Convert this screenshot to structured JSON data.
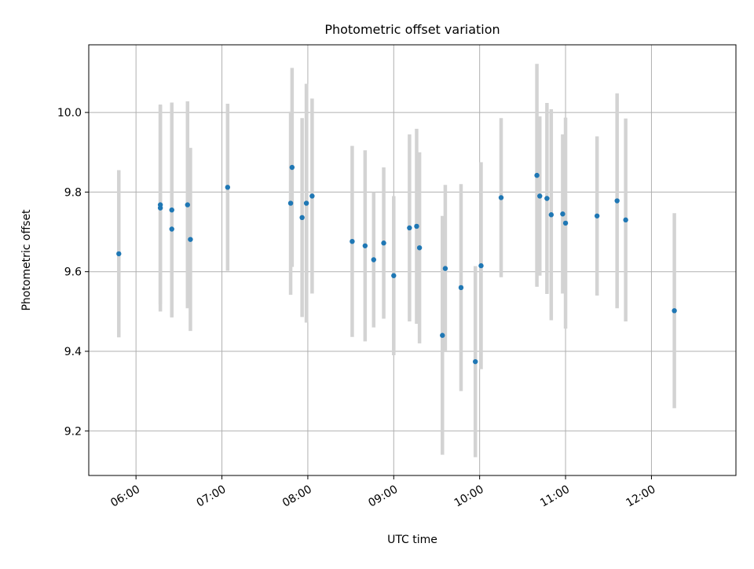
{
  "colors": {
    "point": "#1f77b4",
    "errorbar": "#d3d3d3",
    "grid": "#b0b0b0",
    "axes": "#000000"
  },
  "chart_data": {
    "type": "scatter",
    "title": "Photometric offset variation",
    "xlabel": "UTC time",
    "ylabel": "Photometric offset",
    "xlim": [
      "05:27",
      "12:59"
    ],
    "ylim": [
      9.088,
      10.17
    ],
    "grid": true,
    "x_ticks": [
      "06:00",
      "07:00",
      "08:00",
      "09:00",
      "10:00",
      "11:00",
      "12:00"
    ],
    "y_ticks": [
      "9.2",
      "9.4",
      "9.6",
      "9.8",
      "10.0"
    ],
    "series": [
      {
        "points": [
          {
            "t": "05:48",
            "y": 9.645,
            "err": 0.21
          },
          {
            "t": "06:17",
            "y": 9.76,
            "err": 0.26
          },
          {
            "t": "06:17",
            "y": 9.768,
            "err": 0.25
          },
          {
            "t": "06:25",
            "y": 9.707,
            "err": 0.22
          },
          {
            "t": "06:25",
            "y": 9.755,
            "err": 0.27
          },
          {
            "t": "06:36",
            "y": 9.768,
            "err": 0.26
          },
          {
            "t": "06:38",
            "y": 9.681,
            "err": 0.23
          },
          {
            "t": "07:04",
            "y": 9.812,
            "err": 0.21
          },
          {
            "t": "07:48",
            "y": 9.772,
            "err": 0.23
          },
          {
            "t": "07:49",
            "y": 9.862,
            "err": 0.25
          },
          {
            "t": "07:56",
            "y": 9.736,
            "err": 0.25
          },
          {
            "t": "07:59",
            "y": 9.772,
            "err": 0.3
          },
          {
            "t": "08:03",
            "y": 9.79,
            "err": 0.245
          },
          {
            "t": "08:31",
            "y": 9.676,
            "err": 0.24
          },
          {
            "t": "08:40",
            "y": 9.665,
            "err": 0.24
          },
          {
            "t": "08:46",
            "y": 9.63,
            "err": 0.17
          },
          {
            "t": "08:53",
            "y": 9.672,
            "err": 0.19
          },
          {
            "t": "09:00",
            "y": 9.59,
            "err": 0.2
          },
          {
            "t": "09:11",
            "y": 9.71,
            "err": 0.235
          },
          {
            "t": "09:16",
            "y": 9.714,
            "err": 0.245
          },
          {
            "t": "09:18",
            "y": 9.66,
            "err": 0.24
          },
          {
            "t": "09:34",
            "y": 9.44,
            "err": 0.3
          },
          {
            "t": "09:36",
            "y": 9.608,
            "err": 0.21
          },
          {
            "t": "09:47",
            "y": 9.56,
            "err": 0.26
          },
          {
            "t": "09:57",
            "y": 9.374,
            "err": 0.24
          },
          {
            "t": "10:01",
            "y": 9.615,
            "err": 0.26
          },
          {
            "t": "10:15",
            "y": 9.786,
            "err": 0.2
          },
          {
            "t": "10:40",
            "y": 9.842,
            "err": 0.28
          },
          {
            "t": "10:42",
            "y": 9.79,
            "err": 0.2
          },
          {
            "t": "10:47",
            "y": 9.784,
            "err": 0.24
          },
          {
            "t": "10:50",
            "y": 9.743,
            "err": 0.265
          },
          {
            "t": "10:58",
            "y": 9.745,
            "err": 0.2
          },
          {
            "t": "11:00",
            "y": 9.722,
            "err": 0.265
          },
          {
            "t": "11:22",
            "y": 9.74,
            "err": 0.2
          },
          {
            "t": "11:36",
            "y": 9.778,
            "err": 0.27
          },
          {
            "t": "11:42",
            "y": 9.73,
            "err": 0.255
          },
          {
            "t": "12:16",
            "y": 9.502,
            "err": 0.245
          }
        ]
      }
    ]
  }
}
